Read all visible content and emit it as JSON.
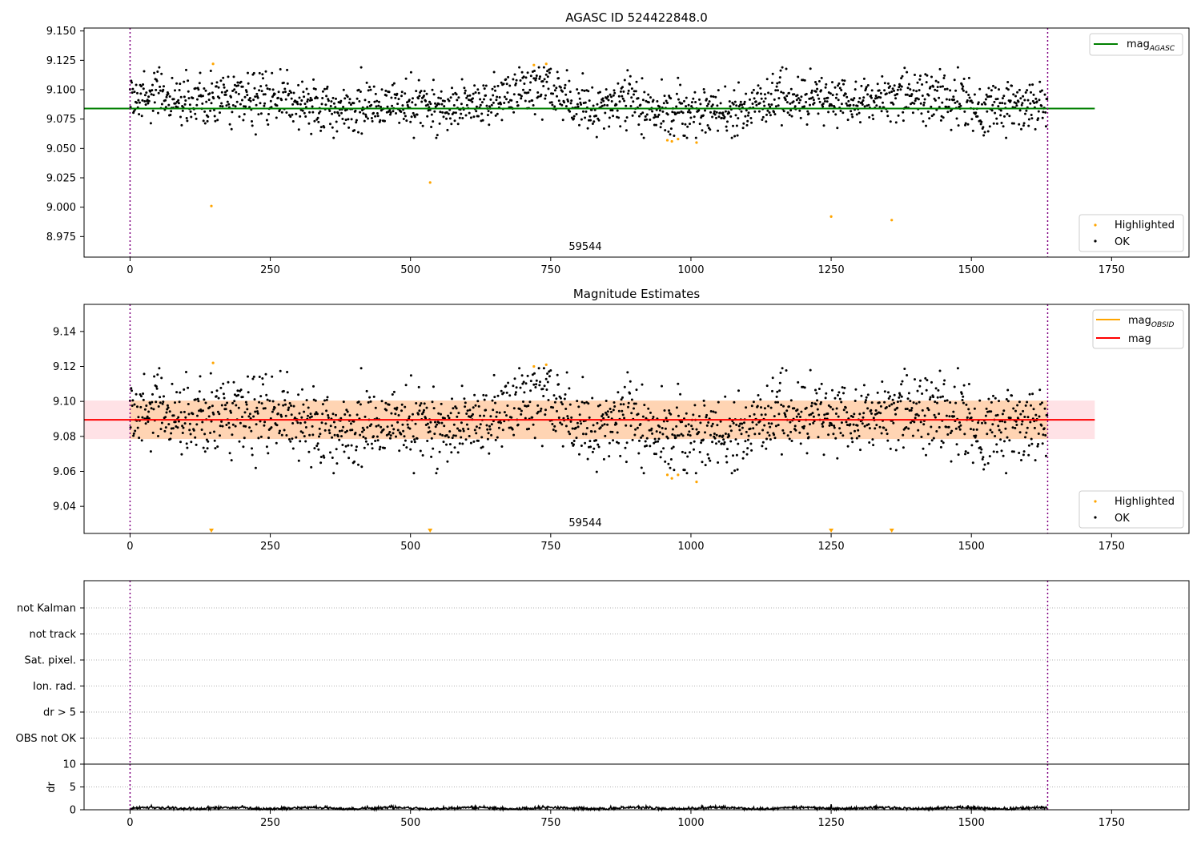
{
  "chart_data": [
    {
      "type": "scatter",
      "title": "AGASC ID 524422848.0",
      "xlim": [
        -82,
        1888
      ],
      "ylim": [
        8.9575,
        9.1525
      ],
      "xticks": [
        0,
        250,
        500,
        750,
        1000,
        1250,
        1500,
        1750
      ],
      "yticks": [
        8.975,
        9.0,
        9.025,
        9.05,
        9.075,
        9.1,
        9.125,
        9.15
      ],
      "ytick_format": 3,
      "vlines": [
        0,
        1636
      ],
      "annotation": {
        "text": "59544",
        "x": 818
      },
      "reference_line": {
        "label": "mag",
        "subscript": "AGASC",
        "y": 9.084,
        "color": "#008000",
        "xrange": [
          -82,
          1720
        ]
      },
      "legend_top": {
        "placement": "top-right",
        "entries": [
          {
            "label": "mag",
            "subscript": "AGASC",
            "color": "#008000"
          }
        ]
      },
      "legend_bottom": {
        "placement": "bottom-right",
        "entries": [
          {
            "label": "Highlighted",
            "color": "#ffa500"
          },
          {
            "label": "OK",
            "color": "#000000"
          }
        ]
      },
      "series": [
        {
          "name": "Highlighted",
          "color": "#ffa500",
          "points": [
            [
              145,
              9.001
            ],
            [
              148,
              9.122
            ],
            [
              535,
              9.021
            ],
            [
              720,
              9.121
            ],
            [
              742,
              9.122
            ],
            [
              958,
              9.057
            ],
            [
              966,
              9.056
            ],
            [
              977,
              9.058
            ],
            [
              1010,
              9.055
            ],
            [
              1250,
              8.992
            ],
            [
              1358,
              8.989
            ]
          ]
        },
        {
          "name": "OK",
          "color": "#000000",
          "n": 1636,
          "seed": 524422848,
          "mean": 9.09,
          "noise": 0.0105
        }
      ]
    },
    {
      "type": "scatter",
      "title": "Magnitude Estimates",
      "xlim": [
        -82,
        1888
      ],
      "ylim": [
        9.0245,
        9.1555
      ],
      "xticks": [
        0,
        250,
        500,
        750,
        1000,
        1250,
        1500,
        1750
      ],
      "yticks": [
        9.04,
        9.06,
        9.08,
        9.1,
        9.12,
        9.14
      ],
      "ytick_format": 2,
      "vlines": [
        0,
        1636
      ],
      "annotation": {
        "text": "59544",
        "x": 818
      },
      "band": {
        "y_low": 9.0785,
        "y_high": 9.1005,
        "xrange": [
          -82,
          1720
        ]
      },
      "reference_line": {
        "label": "mag",
        "y": 9.0895,
        "color": "#ff0000",
        "xrange": [
          -82,
          1720
        ]
      },
      "legend_top": {
        "placement": "top-right",
        "entries": [
          {
            "label": "mag",
            "subscript": "OBSID",
            "color": "#ffa500"
          },
          {
            "label": "mag",
            "color": "#ff0000"
          }
        ]
      },
      "legend_bottom": {
        "placement": "bottom-right",
        "entries": [
          {
            "label": "Highlighted",
            "color": "#ffa500"
          },
          {
            "label": "OK",
            "color": "#000000"
          }
        ]
      },
      "clipped_markers": [
        145,
        535,
        1250,
        1358
      ],
      "series": [
        {
          "name": "Highlighted",
          "color": "#ffa500",
          "points": [
            [
              148,
              9.122
            ],
            [
              720,
              9.12
            ],
            [
              742,
              9.121
            ],
            [
              958,
              9.058
            ],
            [
              966,
              9.056
            ],
            [
              977,
              9.058
            ],
            [
              1010,
              9.054
            ]
          ]
        },
        {
          "name": "OK",
          "color": "#000000",
          "n": 1636,
          "seed": 524422848,
          "mean": 9.09,
          "noise": 0.0105
        }
      ]
    },
    {
      "type": "scatter",
      "title": "",
      "xlim": [
        -82,
        1888
      ],
      "vlines": [
        0,
        1636
      ],
      "flag_labels": [
        "not Kalman",
        "not track",
        "Sat. pixel.",
        "Ion. rad.",
        "dr > 5",
        "OBS not OK"
      ],
      "flags": [],
      "grid": "dotted"
    },
    {
      "type": "line",
      "title": "",
      "ylabel": "dr",
      "xlim": [
        -82,
        1888
      ],
      "ylim": [
        0,
        10
      ],
      "xticks": [
        0,
        250,
        500,
        750,
        1000,
        1250,
        1500,
        1750
      ],
      "yticks": [
        0,
        5,
        10
      ],
      "vlines": [
        0,
        1636
      ],
      "series": [
        {
          "name": "dr",
          "color": "#000000",
          "n": 1636,
          "seed": 99,
          "mean": 0.35,
          "noise": 0.25
        }
      ]
    }
  ]
}
